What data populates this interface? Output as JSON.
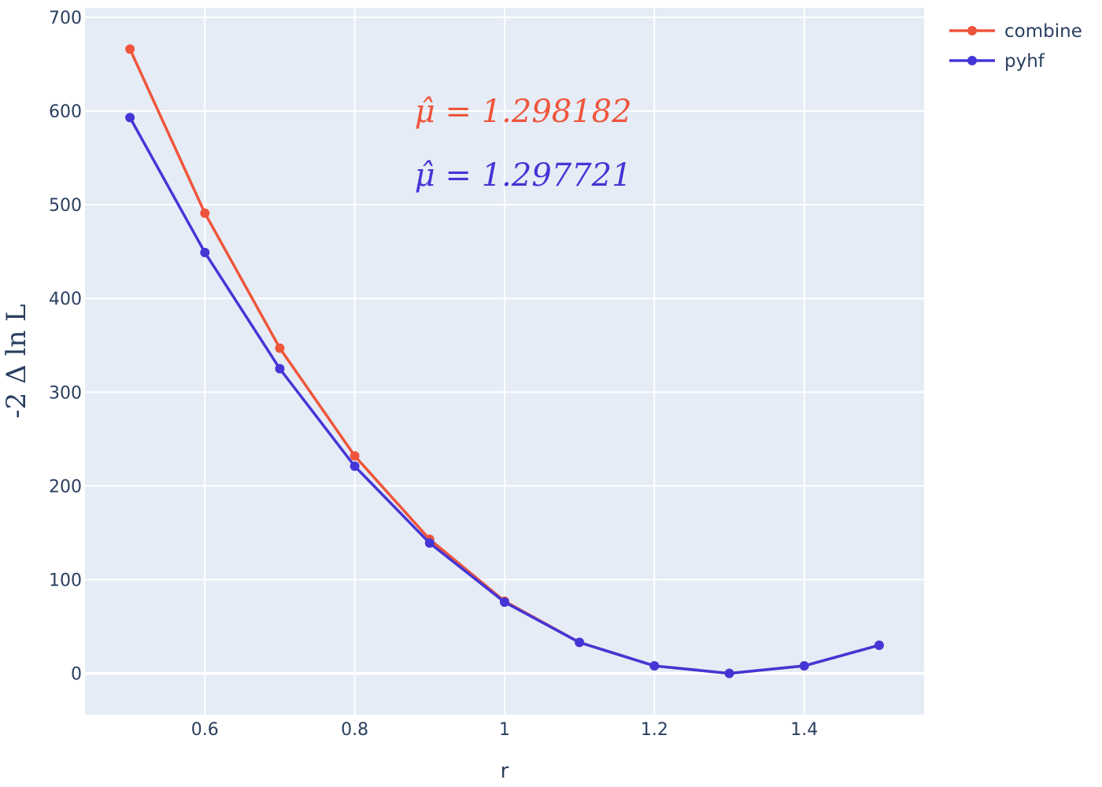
{
  "chart_data": {
    "type": "line",
    "title": "",
    "xlabel": "r",
    "ylabel": "-2 Δ ln L",
    "xlim": [
      0.44,
      1.56
    ],
    "ylim": [
      -44,
      710
    ],
    "x_ticks": [
      0.6,
      0.8,
      1.0,
      1.2,
      1.4
    ],
    "x_tick_labels": [
      "0.6",
      "0.8",
      "1",
      "1.2",
      "1.4"
    ],
    "y_ticks": [
      0,
      100,
      200,
      300,
      400,
      500,
      600,
      700
    ],
    "y_tick_labels": [
      "0",
      "100",
      "200",
      "300",
      "400",
      "500",
      "600",
      "700"
    ],
    "grid": true,
    "legend_position": "top-right, outside plot",
    "plot_background": "#e5ecf6",
    "series": [
      {
        "name": "combine",
        "color": "#ef553b",
        "x": [
          0.5,
          0.6,
          0.7,
          0.8,
          0.9,
          1.0,
          1.1,
          1.2,
          1.3,
          1.4,
          1.5
        ],
        "y": [
          666,
          491,
          347,
          232,
          143,
          77,
          33,
          8,
          0,
          8,
          30
        ]
      },
      {
        "name": "pyhf",
        "color": "#4436d6",
        "x": [
          0.5,
          0.6,
          0.7,
          0.8,
          0.9,
          1.0,
          1.1,
          1.2,
          1.3,
          1.4,
          1.5
        ],
        "y": [
          593,
          449,
          325,
          221,
          139,
          76,
          33,
          8,
          0,
          8,
          30
        ]
      }
    ],
    "annotations": [
      {
        "text": "μ̂ = 1.298182",
        "color": "#ef553b",
        "x": 0.88,
        "y": 600
      },
      {
        "text": "μ̂ = 1.297721",
        "color": "#4436d6",
        "x": 0.88,
        "y": 532
      }
    ]
  }
}
